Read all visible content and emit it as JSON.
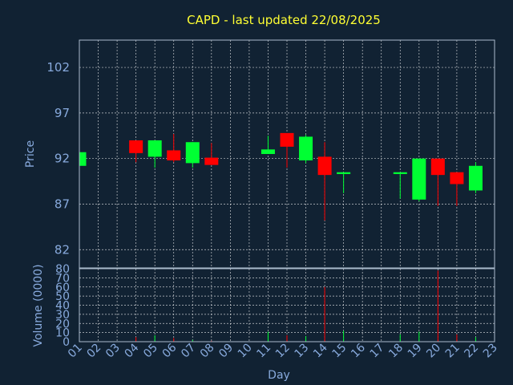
{
  "chart_data": {
    "type": "candlestick",
    "title": "CAPD - last updated 22/08/2025",
    "xlabel": "Day",
    "ylabel_price": "Price",
    "ylabel_volume": "Volume (0000)",
    "x_ticks": [
      "01",
      "02",
      "03",
      "04",
      "05",
      "06",
      "07",
      "08",
      "09",
      "10",
      "11",
      "12",
      "13",
      "14",
      "15",
      "16",
      "17",
      "18",
      "19",
      "20",
      "21",
      "22",
      "23"
    ],
    "price_ticks": [
      82,
      87,
      92,
      97,
      102
    ],
    "price_range": [
      80,
      105
    ],
    "volume_ticks": [
      0,
      10,
      20,
      30,
      40,
      50,
      60,
      70,
      80
    ],
    "volume_range": [
      0,
      80
    ],
    "grid": true,
    "up_color": "#00ff33",
    "down_color": "#ff0000",
    "candles": [
      {
        "day": 1,
        "open": 91.2,
        "close": 92.7,
        "high": 92.7,
        "low": 91.2,
        "volume": 0
      },
      {
        "day": 4,
        "open": 94.0,
        "close": 92.6,
        "high": 94.0,
        "low": 91.6,
        "volume": 5
      },
      {
        "day": 5,
        "open": 92.2,
        "close": 94.0,
        "high": 94.0,
        "low": 91.0,
        "volume": 7
      },
      {
        "day": 6,
        "open": 92.9,
        "close": 91.8,
        "high": 94.7,
        "low": 91.6,
        "volume": 4
      },
      {
        "day": 7,
        "open": 91.5,
        "close": 93.8,
        "high": 93.8,
        "low": 91.0,
        "volume": 2
      },
      {
        "day": 8,
        "open": 92.1,
        "close": 91.3,
        "high": 93.7,
        "low": 91.3,
        "volume": 1
      },
      {
        "day": 11,
        "open": 92.5,
        "close": 93.0,
        "high": 94.5,
        "low": 92.5,
        "volume": 11
      },
      {
        "day": 12,
        "open": 94.8,
        "close": 93.3,
        "high": 94.8,
        "low": 91.0,
        "volume": 7
      },
      {
        "day": 13,
        "open": 91.8,
        "close": 94.4,
        "high": 94.6,
        "low": 91.5,
        "volume": 6
      },
      {
        "day": 14,
        "open": 92.2,
        "close": 90.2,
        "high": 93.8,
        "low": 85.2,
        "volume": 60
      },
      {
        "day": 15,
        "open": 90.3,
        "close": 90.5,
        "high": 90.5,
        "low": 88.2,
        "volume": 12
      },
      {
        "day": 18,
        "open": 90.3,
        "close": 90.5,
        "high": 90.5,
        "low": 87.6,
        "volume": 8
      },
      {
        "day": 19,
        "open": 87.5,
        "close": 92.0,
        "high": 92.0,
        "low": 87.3,
        "volume": 11
      },
      {
        "day": 20,
        "open": 92.0,
        "close": 90.2,
        "high": 92.0,
        "low": 86.8,
        "volume": 78
      },
      {
        "day": 21,
        "open": 90.5,
        "close": 89.2,
        "high": 90.5,
        "low": 86.8,
        "volume": 8
      },
      {
        "day": 22,
        "open": 88.5,
        "close": 91.2,
        "high": 91.6,
        "low": 88.2,
        "volume": 5
      }
    ]
  }
}
